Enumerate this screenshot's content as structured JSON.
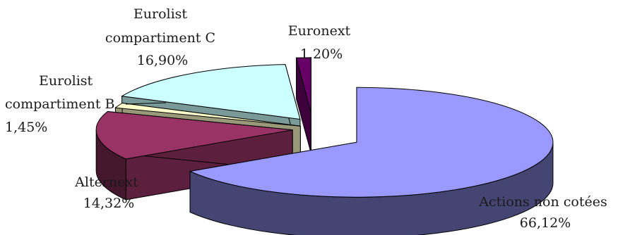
{
  "chart_data": {
    "type": "pie",
    "style": "3d-exploded",
    "categories": [
      "Actions non cotées",
      "Alternext",
      "Eurolist compartiment B",
      "Eurolist compartiment C",
      "Euronext"
    ],
    "values": [
      66.12,
      14.32,
      1.45,
      16.9,
      1.2
    ],
    "value_labels": [
      "66,12%",
      "14,32%",
      "1,45%",
      "16,90%",
      "1,20%"
    ],
    "colors": {
      "Actions non cotées": "#9999ff",
      "Alternext": "#993366",
      "Eurolist compartiment B": "#ffffcc",
      "Eurolist compartiment C": "#ccffff",
      "Euronext": "#660066"
    },
    "slice_labels": [
      {
        "lines": [
          "Actions non cotées"
        ],
        "value": "66,12%"
      },
      {
        "lines": [
          "Alternext"
        ],
        "value": "14,32%"
      },
      {
        "lines": [
          "Eurolist",
          "compartiment B"
        ],
        "value": "1,45%"
      },
      {
        "lines": [
          "Eurolist",
          "compartiment C"
        ],
        "value": "16,90%"
      },
      {
        "lines": [
          "Euronext"
        ],
        "value": "1,20%"
      }
    ],
    "legend": "none"
  }
}
